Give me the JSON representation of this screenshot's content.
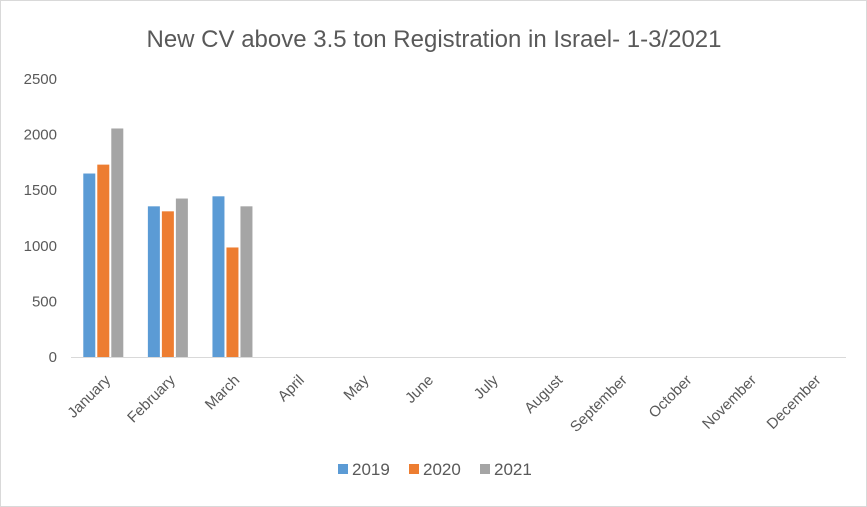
{
  "chart_data": {
    "type": "bar",
    "title": "New CV above 3.5 ton Registration in Israel- 1-3/2021",
    "xlabel": "",
    "ylabel": "",
    "categories": [
      "January",
      "February",
      "March",
      "April",
      "May",
      "June",
      "July",
      "August",
      "September",
      "October",
      "November",
      "December"
    ],
    "series": [
      {
        "name": "2019",
        "color": "#5b9bd5",
        "values": [
          1650,
          1355,
          1445,
          null,
          null,
          null,
          null,
          null,
          null,
          null,
          null,
          null
        ]
      },
      {
        "name": "2020",
        "color": "#ed7d31",
        "values": [
          1730,
          1310,
          985,
          null,
          null,
          null,
          null,
          null,
          null,
          null,
          null,
          null
        ]
      },
      {
        "name": "2021",
        "color": "#a5a5a5",
        "values": [
          2055,
          1425,
          1355,
          null,
          null,
          null,
          null,
          null,
          null,
          null,
          null,
          null
        ]
      }
    ],
    "ylim": [
      0,
      2500
    ],
    "yticks": [
      0,
      500,
      1000,
      1500,
      2000,
      2500
    ],
    "grid": false,
    "legend_position": "bottom"
  }
}
